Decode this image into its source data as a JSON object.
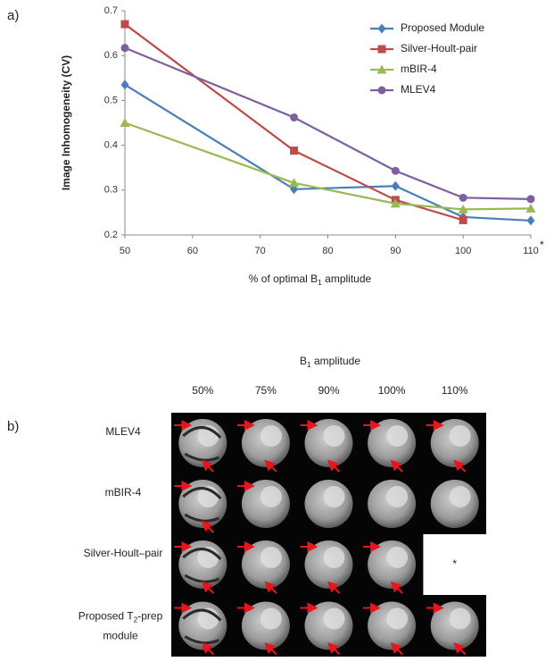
{
  "panel_a": {
    "label": "a)"
  },
  "chart_data": {
    "type": "line",
    "ylabel": "Image Inhomogeneity (CV)",
    "xlabel": [
      "% of optimal B",
      "1",
      " amplitude"
    ],
    "x": [
      50,
      75,
      90,
      100,
      110
    ],
    "xlim": [
      50,
      110
    ],
    "xticks": [
      50,
      60,
      70,
      80,
      90,
      100,
      110
    ],
    "ylim": [
      0.2,
      0.7
    ],
    "yticks": [
      0.2,
      0.3,
      0.4,
      0.5,
      0.6,
      0.7
    ],
    "legend": "upper right",
    "annotation": "*",
    "series": [
      {
        "name": "Proposed Module",
        "color": "#4a7ebb",
        "marker": "diamond",
        "values": [
          0.535,
          0.302,
          0.309,
          0.24,
          0.232
        ]
      },
      {
        "name": "Silver-Hoult-pair",
        "color": "#be4b48",
        "marker": "square",
        "values": [
          0.67,
          0.388,
          0.278,
          0.233,
          null
        ]
      },
      {
        "name": "mBIR-4",
        "color": "#98b954",
        "marker": "triangle",
        "values": [
          0.45,
          0.316,
          0.27,
          0.257,
          0.259
        ]
      },
      {
        "name": "MLEV4",
        "color": "#7d5fa0",
        "marker": "circle",
        "values": [
          0.617,
          0.462,
          0.343,
          0.283,
          0.28
        ]
      }
    ]
  },
  "panel_b": {
    "label": "b)",
    "title": [
      "B",
      "1",
      " amplitude"
    ],
    "columns": [
      "50%",
      "75%",
      "90%",
      "100%",
      "110%"
    ],
    "rows": [
      {
        "label": [
          "MLEV4"
        ]
      },
      {
        "label": [
          "mBIR-4"
        ]
      },
      {
        "label": [
          "Silver-Hoult–pair"
        ]
      },
      {
        "label": [
          "Proposed T",
          "2",
          "-prep",
          "module"
        ]
      }
    ],
    "missing_note": "*"
  }
}
